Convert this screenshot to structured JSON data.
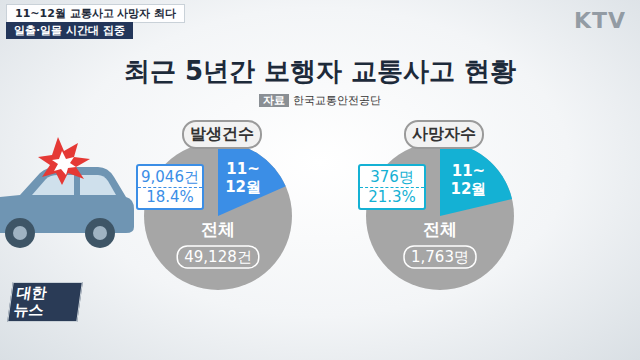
{
  "header": {
    "tags": [
      "11~12월 교통사고 사망자 최다",
      "일출·일몰 시간대 집중"
    ],
    "logo": "KTV"
  },
  "corner_logo": [
    "대한",
    "뉴스"
  ],
  "title": "최근 5년간 보행자 교통사고 현황",
  "source": {
    "tag": "자료",
    "text": "한국교통안전공단"
  },
  "chart_data": [
    {
      "type": "pie",
      "title": "발생건수",
      "categories": [
        "11~12월"
      ],
      "values": [
        9046
      ],
      "value_labels": [
        "9,046건"
      ],
      "percent_labels": [
        "18.4%"
      ],
      "colors": [
        "#3b8ee6"
      ],
      "total": {
        "name": "전체",
        "value": 49128,
        "label": "49,128건",
        "color": "#a6a6a6"
      }
    },
    {
      "type": "pie",
      "title": "사망자수",
      "categories": [
        "11~12월"
      ],
      "values": [
        376
      ],
      "value_labels": [
        "376명"
      ],
      "percent_labels": [
        "21.3%"
      ],
      "colors": [
        "#14b1d4"
      ],
      "total": {
        "name": "전체",
        "value": 1763,
        "label": "1,763명",
        "color": "#a6a6a6"
      }
    }
  ]
}
